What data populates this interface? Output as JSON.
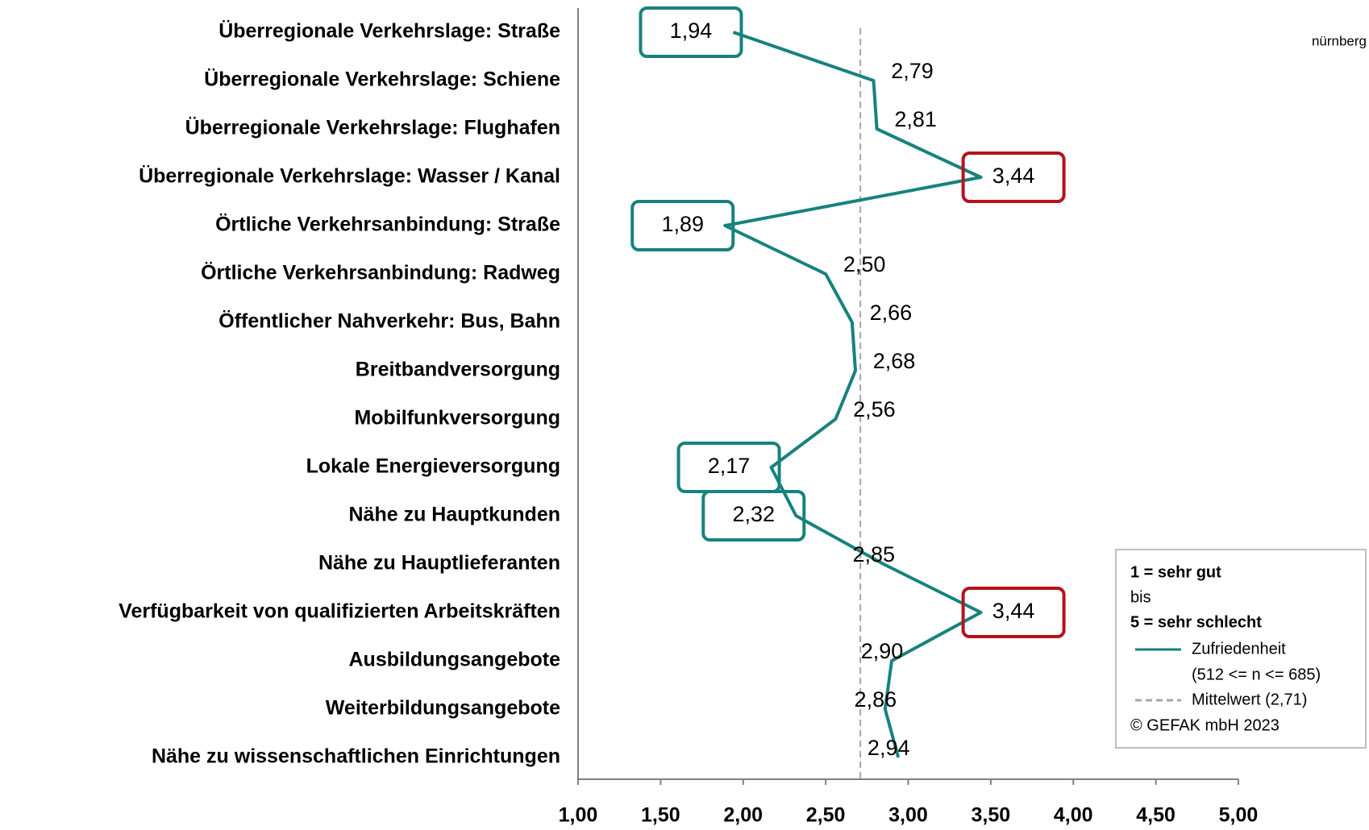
{
  "chart_data": {
    "type": "line",
    "orientation": "horizontal",
    "categories": [
      "Überregionale Verkehrslage: Straße",
      "Überregionale Verkehrslage: Schiene",
      "Überregionale Verkehrslage: Flughafen",
      "Überregionale Verkehrslage: Wasser / Kanal",
      "Örtliche Verkehrsanbindung: Straße",
      "Örtliche Verkehrsanbindung: Radweg",
      "Öffentlicher Nahverkehr: Bus, Bahn",
      "Breitbandversorgung",
      "Mobilfunkversorgung",
      "Lokale Energieversorgung",
      "Nähe zu Hauptkunden",
      "Nähe zu Hauptlieferanten",
      "Verfügbarkeit von qualifizierten Arbeitskräften",
      "Ausbildungsangebote",
      "Weiterbildungsangebote",
      "Nähe zu wissenschaftlichen Einrichtungen"
    ],
    "values": [
      1.94,
      2.79,
      2.81,
      3.44,
      1.89,
      2.5,
      2.66,
      2.68,
      2.56,
      2.17,
      2.32,
      2.85,
      3.44,
      2.9,
      2.86,
      2.94
    ],
    "value_labels": [
      "1,94",
      "2,79",
      "2,81",
      "3,44",
      "1,89",
      "2,50",
      "2,66",
      "2,68",
      "2,56",
      "2,17",
      "2,32",
      "2,85",
      "3,44",
      "2,90",
      "2,86",
      "2,94"
    ],
    "color": "#17827e",
    "box_colors": [
      "#17827e",
      null,
      null,
      "#b5121b",
      "#17827e",
      null,
      null,
      null,
      null,
      "#17827e",
      "#17827e",
      null,
      "#b5121b",
      null,
      null,
      null
    ],
    "mean": 2.71,
    "mean_color": "#a6a6a6",
    "xlim": [
      1,
      5
    ],
    "xticks": [
      {
        "value": 1,
        "label": "1,00"
      },
      {
        "value": 1.5,
        "label": "1,50"
      },
      {
        "value": 2,
        "label": "2,00"
      },
      {
        "value": 2.5,
        "label": "2,50"
      },
      {
        "value": 3,
        "label": "3,00"
      },
      {
        "value": 3.5,
        "label": "3,50"
      },
      {
        "value": 4,
        "label": "4,00"
      },
      {
        "value": 4.5,
        "label": "4,50"
      },
      {
        "value": 5,
        "label": "5,00"
      }
    ],
    "corner_text": "nürnberg",
    "legend": {
      "lines": [
        "1 = sehr gut",
        "bis",
        "5 = sehr schlecht"
      ],
      "series_name": "Zufriedenheit",
      "series_note": "(512 <= n <= 685)",
      "mean_name": "Mittelwert (2,71)",
      "copyright": "© GEFAK mbH 2023"
    }
  }
}
